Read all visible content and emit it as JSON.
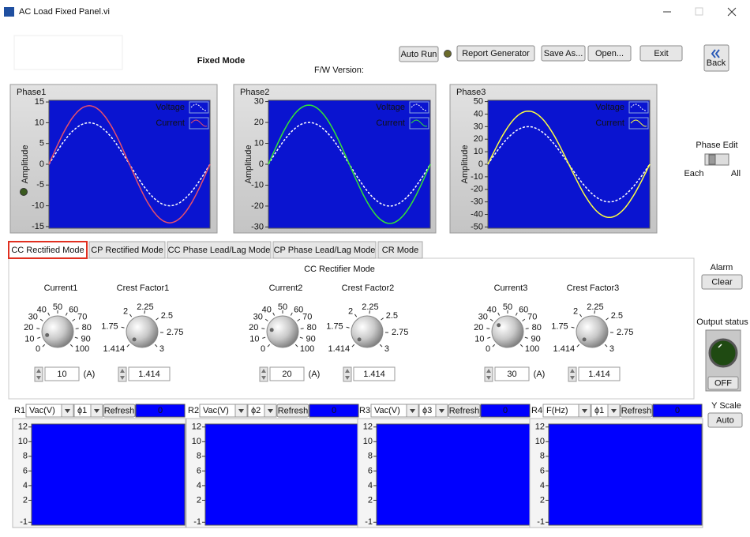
{
  "window": {
    "title": "AC Load Fixed Panel.vi"
  },
  "header": {
    "title": "Fixed Mode",
    "fw_version": "F/W Version:"
  },
  "toolbar": {
    "auto_run": "Auto Run",
    "report_generator": "Report Generator",
    "save_as": "Save As...",
    "open": "Open...",
    "exit": "Exit",
    "back": "Back"
  },
  "phase_charts": [
    {
      "title": "Phase1",
      "y_label": "Amplitude",
      "ylim": [
        -15.4,
        15.4
      ],
      "yticks": [
        15,
        10,
        5,
        0,
        -5,
        -10,
        -15
      ],
      "series": [
        {
          "name": "Voltage",
          "color": "#ffffff",
          "amplitude": 10
        },
        {
          "name": "Current",
          "color": "#e8506a",
          "amplitude": 14.1
        }
      ]
    },
    {
      "title": "Phase2",
      "y_label": "Amplitude",
      "ylim": [
        -30.6,
        30.6
      ],
      "yticks": [
        30,
        20,
        10,
        0,
        -10,
        -20,
        -30
      ],
      "series": [
        {
          "name": "Voltage",
          "color": "#ffffff",
          "amplitude": 20
        },
        {
          "name": "Current",
          "color": "#33e633",
          "amplitude": 28.3
        }
      ]
    },
    {
      "title": "Phase3",
      "y_label": "Amplitude",
      "ylim": [
        -51,
        51
      ],
      "yticks": [
        50,
        40,
        30,
        20,
        10,
        0,
        -10,
        -20,
        -30,
        -40,
        -50
      ],
      "series": [
        {
          "name": "Voltage",
          "color": "#ffffff",
          "amplitude": 30
        },
        {
          "name": "Current",
          "color": "#ffff40",
          "amplitude": 42.4
        }
      ]
    }
  ],
  "phase_edit": {
    "label": "Phase Edit",
    "left": "Each",
    "right": "All"
  },
  "tabs": {
    "items": [
      "CC Rectified Mode",
      "CP Rectified Mode",
      "CC Phase Lead/Lag Mode",
      "CP Phase Lead/Lag Mode",
      "CR Mode"
    ],
    "selected": 0
  },
  "mode_panel": {
    "title": "CC Rectifier Mode",
    "groups": [
      {
        "current": {
          "label": "Current1",
          "scale": [
            0,
            10,
            20,
            30,
            40,
            50,
            60,
            70,
            80,
            90,
            100
          ],
          "value": 10,
          "unit": "(A)"
        },
        "crest_factor": {
          "label": "Crest Factor1",
          "scale": [
            1.414,
            1.75,
            2,
            2.25,
            2.5,
            2.75,
            3
          ],
          "value": 1.414
        }
      },
      {
        "current": {
          "label": "Current2",
          "scale": [
            0,
            10,
            20,
            30,
            40,
            50,
            60,
            70,
            80,
            90,
            100
          ],
          "value": 20,
          "unit": "(A)"
        },
        "crest_factor": {
          "label": "Crest Factor2",
          "scale": [
            1.414,
            1.75,
            2,
            2.25,
            2.5,
            2.75,
            3
          ],
          "value": 1.414
        }
      },
      {
        "current": {
          "label": "Current3",
          "scale": [
            0,
            10,
            20,
            30,
            40,
            50,
            60,
            70,
            80,
            90,
            100
          ],
          "value": 30,
          "unit": "(A)"
        },
        "crest_factor": {
          "label": "Crest Factor3",
          "scale": [
            1.414,
            1.75,
            2,
            2.25,
            2.5,
            2.75,
            3
          ],
          "value": 1.414
        }
      }
    ]
  },
  "alarm": {
    "label": "Alarm",
    "button": "Clear"
  },
  "output_status": {
    "label": "Output status",
    "button": "OFF"
  },
  "y_scale": {
    "label": "Y Scale",
    "button": "Auto"
  },
  "readings": [
    {
      "name": "R1",
      "quantity": "Vac(V)",
      "phase": "ϕ1",
      "refresh": "Refresh",
      "value": 0,
      "ylim": [
        -1.4,
        12.4
      ],
      "yticks": [
        12,
        10,
        8,
        6,
        4,
        2,
        -1
      ]
    },
    {
      "name": "R2",
      "quantity": "Vac(V)",
      "phase": "ϕ2",
      "refresh": "Refresh",
      "value": 0,
      "ylim": [
        -1.4,
        12.4
      ],
      "yticks": [
        12,
        10,
        8,
        6,
        4,
        2,
        -1
      ]
    },
    {
      "name": "R3",
      "quantity": "Vac(V)",
      "phase": "ϕ3",
      "refresh": "Refresh",
      "value": 0,
      "ylim": [
        -1.4,
        12.4
      ],
      "yticks": [
        12,
        10,
        8,
        6,
        4,
        2,
        -1
      ]
    },
    {
      "name": "R4",
      "quantity": "F(Hz)",
      "phase": "ϕ1",
      "refresh": "Refresh",
      "value": 0,
      "ylim": [
        -1.4,
        12.4
      ],
      "yticks": [
        12,
        10,
        8,
        6,
        4,
        2,
        -1
      ]
    }
  ]
}
